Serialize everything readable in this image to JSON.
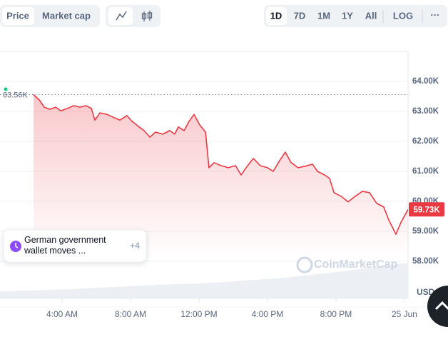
{
  "toolbar": {
    "tabs": [
      "Price",
      "Market cap"
    ],
    "ranges": [
      "1D",
      "7D",
      "1M",
      "1Y",
      "All",
      "LOG"
    ],
    "more": "···"
  },
  "chart_data": {
    "type": "line",
    "x": [
      2.33,
      2.67,
      2.96,
      3.29,
      3.63,
      3.92,
      4.33,
      4.67,
      5.04,
      5.38,
      5.71,
      5.92,
      6.21,
      6.63,
      7.04,
      7.38,
      7.79,
      8.08,
      8.5,
      8.79,
      9.13,
      9.46,
      9.88,
      10.29,
      10.58,
      10.79,
      11.13,
      11.42,
      11.71,
      12.04,
      12.38,
      12.58,
      12.88,
      13.29,
      13.71,
      14.13,
      14.46,
      14.75,
      15.17,
      15.58,
      16,
      16.33,
      16.71,
      17.04,
      17.38,
      17.79,
      18.21,
      18.63,
      18.92,
      19.33,
      19.63,
      19.88,
      20.29,
      20.71,
      21.13,
      21.54,
      21.96,
      22.38,
      22.79,
      23.08,
      23.5,
      23.79,
      24.21
    ],
    "series": [
      {
        "color": "#ea3943",
        "values": [
          63.56,
          63.38,
          63.14,
          63.07,
          63.14,
          63.02,
          63.1,
          63.19,
          63.14,
          63.19,
          63.1,
          62.71,
          62.95,
          62.9,
          62.79,
          62.71,
          62.86,
          62.67,
          62.48,
          62.36,
          62.14,
          62.31,
          62.24,
          62.36,
          62.24,
          62.48,
          62.36,
          62.67,
          62.9,
          62.55,
          62.31,
          61.12,
          61.29,
          61.19,
          61.12,
          61.19,
          60.88,
          61.12,
          61.43,
          61.19,
          61.12,
          61,
          61.36,
          61.64,
          61.29,
          61.12,
          61.17,
          61.24,
          61,
          60.88,
          60.76,
          60.29,
          60.17,
          59.98,
          60.17,
          60.33,
          60.29,
          59.93,
          59.81,
          59.38,
          58.9,
          59.29,
          59.73
        ]
      }
    ],
    "xlim": [
      0.375,
      24.21
    ],
    "xticks": [
      {
        "value": 4,
        "label": "4:00 AM"
      },
      {
        "value": 8,
        "label": "8:00 AM"
      },
      {
        "value": 12,
        "label": "12:00 PM"
      },
      {
        "value": 16,
        "label": "4:00 PM"
      },
      {
        "value": 20,
        "label": "8:00 PM"
      },
      {
        "value": 24,
        "label": "25 Jun"
      }
    ],
    "ylim": [
      56.76,
      65
    ],
    "yticks": [
      {
        "value": 58,
        "label": "58.00K"
      },
      {
        "value": 59,
        "label": "59.00K"
      },
      {
        "value": 60,
        "label": "60.00K"
      },
      {
        "value": 61,
        "label": "61.00K"
      },
      {
        "value": 62,
        "label": "62.00K"
      },
      {
        "value": 63,
        "label": "63.00K"
      },
      {
        "value": 64,
        "label": "64.00K"
      }
    ],
    "grid": true,
    "open": {
      "value": 63.56,
      "label": "63.56K"
    },
    "current": {
      "value": 59.73,
      "label": "59.73K"
    },
    "currency": "USD",
    "watermark": "CoinMarketCap"
  },
  "news": {
    "text": "German government wallet moves ...",
    "count": "+4"
  }
}
